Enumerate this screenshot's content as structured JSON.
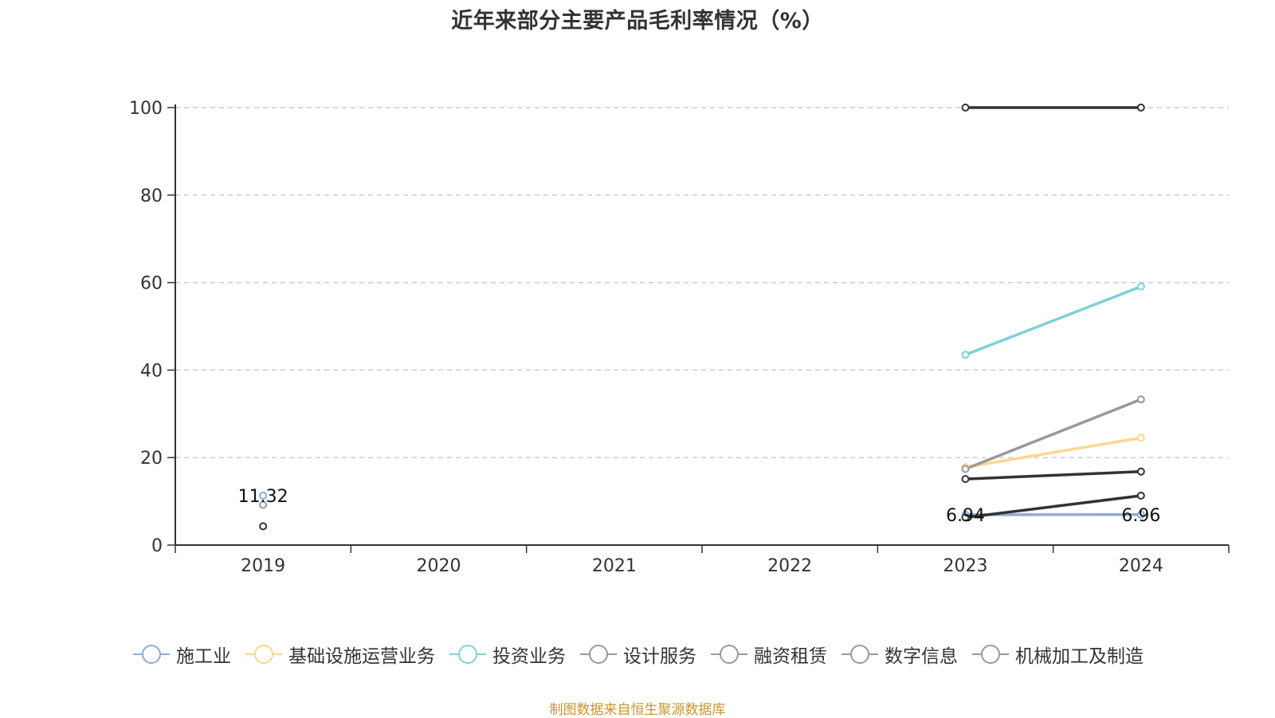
{
  "title": "近年来部分主要产品毛利率情况（%）",
  "source_note": "制图数据来自恒生聚源数据库",
  "chart_data": {
    "type": "line",
    "title": "近年来部分主要产品毛利率情况（%）",
    "xlabel": "",
    "ylabel": "",
    "categories": [
      "2019",
      "2020",
      "2021",
      "2022",
      "2023",
      "2024"
    ],
    "ylim": [
      0,
      100
    ],
    "yticks": [
      0,
      20,
      40,
      60,
      80,
      100
    ],
    "grid": true,
    "legend_position": "bottom",
    "series": [
      {
        "name": "施工业",
        "color": "#8fabd9",
        "values": [
          11.32,
          null,
          null,
          null,
          6.94,
          6.96
        ]
      },
      {
        "name": "基础设施运营业务",
        "color": "#fcd68f",
        "values": [
          null,
          null,
          null,
          null,
          17.8,
          24.5
        ]
      },
      {
        "name": "投资业务",
        "color": "#7fd1d6",
        "values": [
          null,
          null,
          null,
          null,
          43.5,
          59.1
        ]
      },
      {
        "name": "设计服务",
        "color": "#999999",
        "values": [
          9.2,
          null,
          null,
          null,
          17.4,
          33.3
        ]
      },
      {
        "name": "融资租赁",
        "color": "#333333",
        "values": [
          null,
          null,
          null,
          null,
          100,
          100
        ]
      },
      {
        "name": "数字信息",
        "color": "#333333",
        "values": [
          null,
          null,
          null,
          null,
          15.1,
          16.8
        ]
      },
      {
        "name": "机械加工及制造",
        "color": "#333333",
        "values": [
          4.3,
          null,
          null,
          null,
          6.3,
          11.3
        ]
      }
    ],
    "data_labels": [
      {
        "series": 0,
        "index": 0,
        "text": "11.32"
      },
      {
        "series": 0,
        "index": 4,
        "text": "6.94"
      },
      {
        "series": 0,
        "index": 5,
        "text": "6.96"
      }
    ],
    "legend_swatch_color": "#999999"
  }
}
